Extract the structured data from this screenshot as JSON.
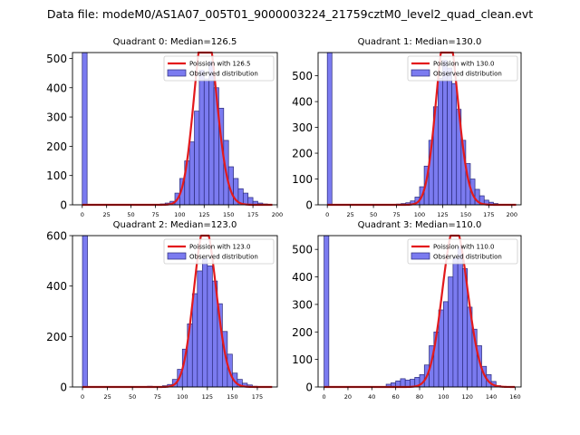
{
  "figure_title": "Data file: modeM0/AS1A07_005T01_9000003224_21759cztM0_level2_quad_clean.evt",
  "colors": {
    "bar_fill": "#7b7bf0",
    "bar_edge": "#2a2a7a",
    "line": "#e31a1c",
    "axis": "#000000"
  },
  "chart_data": [
    {
      "type": "bar",
      "title": "Quadrant 0: Median=126.5",
      "xlim": [
        -10,
        200
      ],
      "ylim": [
        0,
        520
      ],
      "xticks": [
        0,
        25,
        50,
        75,
        100,
        125,
        150,
        175,
        200
      ],
      "yticks": [
        0,
        100,
        200,
        300,
        400,
        500
      ],
      "legend": {
        "position": "top-right",
        "line_label": "Poission with 126.5",
        "bar_label": "Observed distribution"
      },
      "bin_width": 5,
      "bin_starts": [
        0,
        70,
        80,
        85,
        90,
        95,
        100,
        105,
        110,
        115,
        120,
        125,
        130,
        135,
        140,
        145,
        150,
        155,
        160,
        165,
        170,
        175,
        180,
        185
      ],
      "counts": [
        520,
        2,
        3,
        6,
        12,
        40,
        90,
        150,
        215,
        320,
        460,
        430,
        490,
        400,
        330,
        220,
        130,
        90,
        55,
        40,
        25,
        12,
        6,
        3
      ],
      "poisson_mean": 126.5
    },
    {
      "type": "bar",
      "title": "Quadrant 1: Median=130.0",
      "xlim": [
        -10,
        210
      ],
      "ylim": [
        0,
        590
      ],
      "xticks": [
        0,
        25,
        50,
        75,
        100,
        125,
        150,
        175,
        200
      ],
      "yticks": [
        0,
        100,
        200,
        300,
        400,
        500
      ],
      "legend": {
        "position": "top-right",
        "line_label": "Poission with 130.0",
        "bar_label": "Observed distribution"
      },
      "bin_width": 5,
      "bin_starts": [
        0,
        65,
        75,
        80,
        85,
        90,
        95,
        100,
        105,
        110,
        115,
        120,
        125,
        130,
        135,
        140,
        145,
        150,
        155,
        160,
        165,
        170,
        175,
        180
      ],
      "counts": [
        590,
        2,
        3,
        5,
        8,
        15,
        30,
        70,
        150,
        250,
        380,
        490,
        560,
        530,
        470,
        370,
        250,
        160,
        100,
        60,
        35,
        18,
        10,
        5
      ],
      "poisson_mean": 130.0
    },
    {
      "type": "bar",
      "title": "Quadrant 2: Median=123.0",
      "xlim": [
        -10,
        195
      ],
      "ylim": [
        0,
        600
      ],
      "xticks": [
        0,
        25,
        50,
        75,
        100,
        125,
        150,
        175
      ],
      "yticks": [
        0,
        200,
        400,
        600
      ],
      "legend": {
        "position": "top-right",
        "line_label": "Poission with 123.0",
        "bar_label": "Observed distribution"
      },
      "bin_width": 5,
      "bin_starts": [
        0,
        65,
        80,
        85,
        90,
        95,
        100,
        105,
        110,
        115,
        120,
        125,
        130,
        135,
        140,
        145,
        150,
        155,
        160,
        165,
        170
      ],
      "counts": [
        600,
        3,
        5,
        10,
        30,
        70,
        150,
        250,
        370,
        460,
        510,
        480,
        420,
        330,
        220,
        130,
        55,
        30,
        15,
        8,
        3
      ],
      "poisson_mean": 123.0
    },
    {
      "type": "bar",
      "title": "Quadrant 3: Median=110.0",
      "xlim": [
        -5,
        165
      ],
      "ylim": [
        0,
        550
      ],
      "xticks": [
        0,
        20,
        40,
        60,
        80,
        100,
        120,
        140,
        160
      ],
      "yticks": [
        0,
        100,
        200,
        300,
        400,
        500
      ],
      "legend": {
        "position": "top-right",
        "line_label": "Poission with 110.0",
        "bar_label": "Observed distribution"
      },
      "bin_width": 4,
      "bin_starts": [
        0,
        48,
        52,
        56,
        60,
        64,
        68,
        72,
        76,
        80,
        84,
        88,
        92,
        96,
        100,
        104,
        108,
        112,
        116,
        120,
        124,
        128,
        132,
        136,
        140,
        144
      ],
      "counts": [
        550,
        2,
        10,
        15,
        22,
        30,
        25,
        28,
        35,
        45,
        80,
        150,
        200,
        280,
        310,
        400,
        470,
        510,
        430,
        290,
        210,
        150,
        75,
        45,
        20,
        5
      ],
      "poisson_mean": 110.0
    }
  ]
}
